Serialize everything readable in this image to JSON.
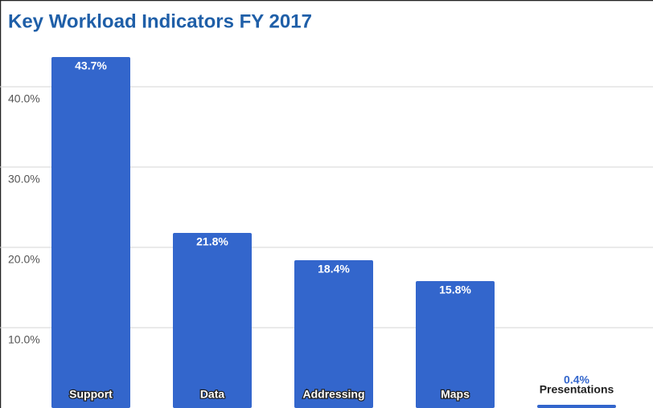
{
  "chart_data": {
    "type": "bar",
    "title": "Key Workload Indicators FY 2017",
    "categories": [
      "Support",
      "Data",
      "Addressing",
      "Maps",
      "Presentations"
    ],
    "values": [
      43.7,
      21.8,
      18.4,
      15.8,
      0.4
    ],
    "value_labels": [
      "43.7%",
      "21.8%",
      "18.4%",
      "15.8%",
      "0.4%"
    ],
    "color": "#3366cc",
    "ylim": [
      0,
      46.3
    ],
    "yticks": [
      {
        "value": 10,
        "label": "10.0%"
      },
      {
        "value": 20,
        "label": "20.0%"
      },
      {
        "value": 30,
        "label": "30.0%"
      },
      {
        "value": 40,
        "label": "40.0%"
      }
    ],
    "grid": true
  }
}
